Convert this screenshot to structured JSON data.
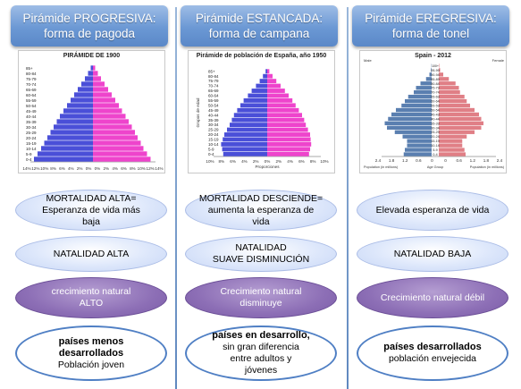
{
  "columns": [
    {
      "header_line1": "Pirámide PROGRESIVA:",
      "header_line2": "forma de pagoda",
      "chart_title": "PIRÁMIDE DE 1900",
      "mortality": [
        "MORTALIDAD ALTA=",
        "Esperanza de vida más",
        "baja"
      ],
      "natality": [
        "NATALIDAD ALTA"
      ],
      "growth": [
        "crecimiento natural",
        "ALTO"
      ],
      "summary_bold": [
        "países menos",
        "desarrollados"
      ],
      "summary_normal": [
        "Población joven"
      ]
    },
    {
      "header_line1": "Pirámide ESTANCADA:",
      "header_line2": "forma de campana",
      "chart_title": "Pirámide de población de España, año 1950",
      "mortality": [
        "MORTALIDAD DESCIENDE=",
        "aumenta la esperanza de",
        "vida"
      ],
      "natality": [
        "NATALIDAD",
        "SUAVE DISMINUCIÓN"
      ],
      "growth": [
        "Crecimiento natural",
        "disminuye"
      ],
      "summary_bold": [
        "países en desarrollo,"
      ],
      "summary_normal": [
        "sin gran diferencia",
        "entre adultos y",
        "jóvenes"
      ]
    },
    {
      "header_line1": "Pirámide EREGRESIVA:",
      "header_line2": "forma de tonel",
      "chart_title": "Spain - 2012",
      "mortality": [
        "Elevada esperanza de vida"
      ],
      "natality": [
        "NATALIDAD BAJA"
      ],
      "growth": [
        "Crecimiento natural débil"
      ],
      "summary_bold": [
        "países desarrollados"
      ],
      "summary_normal": [
        "población envejecida"
      ]
    }
  ],
  "chart_data": [
    {
      "type": "bar",
      "orientation": "horizontal-pyramid",
      "title": "PIRÁMIDE DE 1900",
      "categories": [
        "0-4",
        "5-9",
        "10-14",
        "15-19",
        "20-24",
        "25-29",
        "30-34",
        "35-39",
        "40-44",
        "45-49",
        "50-54",
        "55-59",
        "60-64",
        "65-69",
        "70-74",
        "75-79",
        "80-84",
        "85+"
      ],
      "series": [
        {
          "name": "",
          "values": [
            13.2,
            12.4,
            11.6,
            10.9,
            10.2,
            9.5,
            8.8,
            8.1,
            7.4,
            6.6,
            5.8,
            5.0,
            4.2,
            3.4,
            2.6,
            1.8,
            1.1,
            0.5
          ]
        },
        {
          "name": "",
          "values": [
            12.9,
            12.1,
            11.3,
            10.7,
            10.0,
            9.4,
            8.7,
            8.0,
            7.3,
            6.5,
            5.8,
            5.0,
            4.2,
            3.4,
            2.6,
            1.8,
            1.1,
            0.5
          ]
        }
      ],
      "xlim": [
        0,
        14
      ],
      "tick_labels": [
        "14%",
        "12%",
        "10%",
        "8%",
        "6%",
        "4%",
        "2%",
        "0%",
        "0%",
        "2%",
        "4%",
        "6%",
        "8%",
        "10%",
        "12%",
        "14%"
      ],
      "colors": [
        "#4a4fd8",
        "#ee44cc"
      ]
    },
    {
      "type": "bar",
      "orientation": "horizontal-pyramid",
      "title": "Pirámide de población de España, año 1950",
      "xlabel": "Proporciones",
      "ylabel": "Grupos de edad",
      "categories": [
        "0-4",
        "5-9",
        "10-14",
        "15-19",
        "20-24",
        "25-29",
        "30-34",
        "35-39",
        "40-44",
        "45-49",
        "50-54",
        "55-59",
        "60-64",
        "65-69",
        "70-74",
        "75-79",
        "80-84",
        "85+"
      ],
      "series": [
        {
          "name": "",
          "values": [
            8.2,
            8.4,
            8.6,
            8.3,
            8.0,
            7.5,
            7.0,
            6.6,
            6.2,
            5.6,
            5.0,
            4.4,
            3.6,
            2.9,
            2.1,
            1.4,
            0.8,
            0.3
          ]
        },
        {
          "name": "",
          "values": [
            7.8,
            8.0,
            8.2,
            8.1,
            8.0,
            7.6,
            7.2,
            6.9,
            6.5,
            5.9,
            5.3,
            4.7,
            4.0,
            3.3,
            2.5,
            1.7,
            1.0,
            0.4
          ]
        }
      ],
      "xlim": [
        0,
        10
      ],
      "tick_labels": [
        "10%",
        "8%",
        "6%",
        "4%",
        "2%",
        "0%",
        "2%",
        "4%",
        "6%",
        "8%",
        "10%"
      ],
      "colors": [
        "#4a4fd8",
        "#ee44cc"
      ]
    },
    {
      "type": "bar",
      "orientation": "horizontal-pyramid",
      "title": "Spain - 2012",
      "categories": [
        "0-4",
        "5-9",
        "10-14",
        "15-19",
        "20-24",
        "25-29",
        "30-34",
        "35-39",
        "40-44",
        "45-49",
        "50-54",
        "55-59",
        "60-64",
        "65-69",
        "70-74",
        "75-79",
        "80-84",
        "85-89",
        "90-94",
        "95-99",
        "100+"
      ],
      "series": [
        {
          "name": "Male",
          "values": [
            1.25,
            1.2,
            1.1,
            1.1,
            1.3,
            1.65,
            2.0,
            2.1,
            1.95,
            1.8,
            1.6,
            1.35,
            1.2,
            1.05,
            0.8,
            0.7,
            0.5,
            0.25,
            0.1,
            0.03,
            0.01
          ]
        },
        {
          "name": "Female",
          "values": [
            1.2,
            1.15,
            1.05,
            1.05,
            1.25,
            1.6,
            1.9,
            2.0,
            1.9,
            1.8,
            1.6,
            1.4,
            1.25,
            1.15,
            0.95,
            0.9,
            0.75,
            0.45,
            0.2,
            0.06,
            0.02
          ]
        }
      ],
      "xlim": [
        0,
        2.4
      ],
      "tick_labels": [
        "2.4",
        "1.8",
        "1.2",
        "0.6",
        "0",
        "0",
        "0.6",
        "1.2",
        "1.8",
        "2.4"
      ],
      "axis_labels": [
        "Population (in millions)",
        "Age Group",
        "Population (in millions)"
      ],
      "colors": [
        "#5a7fb0",
        "#e07f86"
      ]
    }
  ]
}
